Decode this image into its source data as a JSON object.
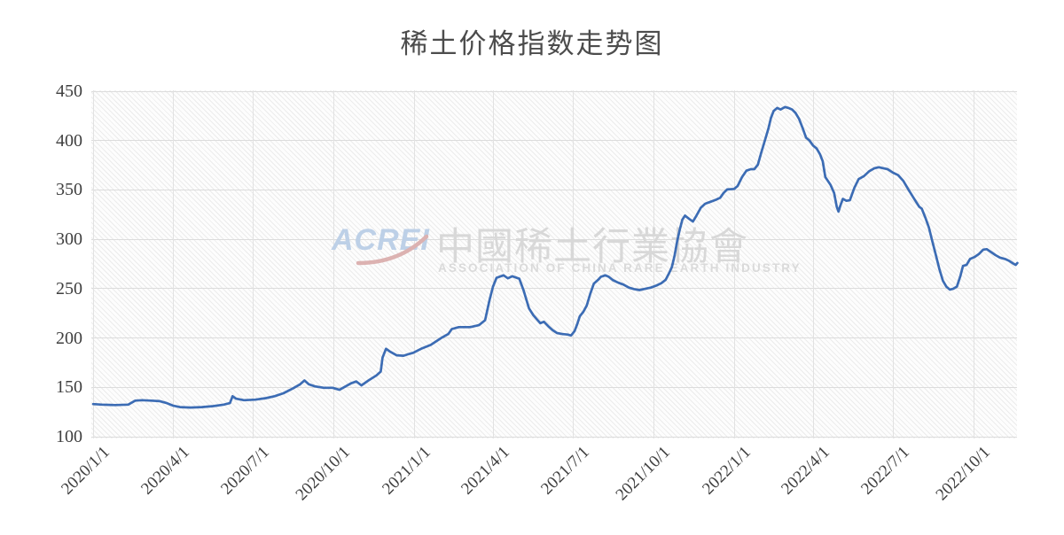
{
  "page": {
    "title": "稀土价格指数走势图"
  },
  "watermark": {
    "acrei": "ACREI",
    "cn": "中國稀土行業協會",
    "en": "ASSOCIATION OF CHINA RARE EARTH INDUSTRY"
  },
  "colors": {
    "line": "#3c6cb4",
    "grid": "#dcdcdc",
    "axis_text": "#3f3f3f",
    "title_text": "#4c4c4c",
    "watermark_blue": "#bdd0e7",
    "watermark_gray": "#d8d8d8",
    "watermark_red": "#dcA3a2"
  },
  "chart_data": {
    "type": "line",
    "title": "稀土价格指数走势图",
    "legend": "none",
    "grid": "on",
    "plot_background": "diagonal-hatch",
    "x_axis": {
      "tick_labels": [
        "2020/1/1",
        "2020/4/1",
        "2020/7/1",
        "2020/10/1",
        "2021/1/1",
        "2021/4/1",
        "2021/7/1",
        "2021/10/1",
        "2022/1/1",
        "2022/4/1",
        "2022/7/1",
        "2022/10/1"
      ],
      "label_rotation_deg": -45
    },
    "y_axis": {
      "min": 100,
      "max": 450,
      "step": 50,
      "ticks": [
        450,
        400,
        350,
        300,
        250,
        200,
        150,
        100
      ]
    },
    "series": [
      {
        "name": "稀土价格指数",
        "color": "#3c6cb4",
        "points": [
          [
            "2020-01-01",
            133
          ],
          [
            "2020-01-11",
            132.5
          ],
          [
            "2020-01-26",
            132
          ],
          [
            "2020-02-10",
            132.5
          ],
          [
            "2020-02-18",
            136.5
          ],
          [
            "2020-02-26",
            137
          ],
          [
            "2020-03-07",
            136.5
          ],
          [
            "2020-03-17",
            136
          ],
          [
            "2020-03-25",
            134
          ],
          [
            "2020-04-01",
            131.5
          ],
          [
            "2020-04-09",
            130
          ],
          [
            "2020-04-21",
            129.5
          ],
          [
            "2020-05-04",
            130
          ],
          [
            "2020-05-17",
            131
          ],
          [
            "2020-05-29",
            132.5
          ],
          [
            "2020-06-05",
            134
          ],
          [
            "2020-06-08",
            141
          ],
          [
            "2020-06-12",
            138.5
          ],
          [
            "2020-06-21",
            137
          ],
          [
            "2020-07-04",
            137.5
          ],
          [
            "2020-07-16",
            139
          ],
          [
            "2020-07-26",
            141
          ],
          [
            "2020-08-05",
            144
          ],
          [
            "2020-08-16",
            149
          ],
          [
            "2020-08-24",
            153
          ],
          [
            "2020-08-29",
            157
          ],
          [
            "2020-09-03",
            153
          ],
          [
            "2020-09-10",
            151
          ],
          [
            "2020-09-20",
            149.5
          ],
          [
            "2020-09-30",
            149.5
          ],
          [
            "2020-10-08",
            147.5
          ],
          [
            "2020-10-15",
            151
          ],
          [
            "2020-10-21",
            154
          ],
          [
            "2020-10-27",
            156
          ],
          [
            "2020-11-02",
            152
          ],
          [
            "2020-11-10",
            157
          ],
          [
            "2020-11-19",
            162
          ],
          [
            "2020-11-24",
            166
          ],
          [
            "2020-11-26",
            180
          ],
          [
            "2020-11-30",
            189
          ],
          [
            "2020-12-05",
            186
          ],
          [
            "2020-12-12",
            182.5
          ],
          [
            "2020-12-20",
            182
          ],
          [
            "2020-12-27",
            184
          ],
          [
            "2020-12-31",
            185
          ],
          [
            "2021-01-09",
            189
          ],
          [
            "2021-01-20",
            193
          ],
          [
            "2021-02-01",
            200
          ],
          [
            "2021-02-09",
            204
          ],
          [
            "2021-02-13",
            209
          ],
          [
            "2021-02-21",
            211
          ],
          [
            "2021-03-06",
            211
          ],
          [
            "2021-03-16",
            213
          ],
          [
            "2021-03-23",
            218
          ],
          [
            "2021-03-28",
            238
          ],
          [
            "2021-04-01",
            252
          ],
          [
            "2021-04-05",
            261
          ],
          [
            "2021-04-13",
            263.5
          ],
          [
            "2021-04-18",
            260.5
          ],
          [
            "2021-04-23",
            262.5
          ],
          [
            "2021-05-01",
            260
          ],
          [
            "2021-05-06",
            248
          ],
          [
            "2021-05-12",
            230
          ],
          [
            "2021-05-17",
            223
          ],
          [
            "2021-05-22",
            218
          ],
          [
            "2021-05-25",
            215
          ],
          [
            "2021-05-29",
            216.5
          ],
          [
            "2021-06-03",
            212
          ],
          [
            "2021-06-08",
            208
          ],
          [
            "2021-06-13",
            205
          ],
          [
            "2021-06-19",
            204
          ],
          [
            "2021-06-25",
            203.5
          ],
          [
            "2021-06-29",
            202.5
          ],
          [
            "2021-07-03",
            207
          ],
          [
            "2021-07-06",
            214
          ],
          [
            "2021-07-09",
            222
          ],
          [
            "2021-07-13",
            226.5
          ],
          [
            "2021-07-17",
            233
          ],
          [
            "2021-07-21",
            245
          ],
          [
            "2021-07-25",
            255
          ],
          [
            "2021-07-30",
            259
          ],
          [
            "2021-08-02",
            262
          ],
          [
            "2021-08-07",
            263.5
          ],
          [
            "2021-08-11",
            262
          ],
          [
            "2021-08-16",
            258.5
          ],
          [
            "2021-08-22",
            256
          ],
          [
            "2021-08-28",
            254
          ],
          [
            "2021-09-03",
            251
          ],
          [
            "2021-09-09",
            249.5
          ],
          [
            "2021-09-15",
            248.5
          ],
          [
            "2021-09-22",
            250
          ],
          [
            "2021-09-28",
            251
          ],
          [
            "2021-10-04",
            253
          ],
          [
            "2021-10-10",
            255.5
          ],
          [
            "2021-10-15",
            259
          ],
          [
            "2021-10-19",
            266
          ],
          [
            "2021-10-22",
            272
          ],
          [
            "2021-10-25",
            283
          ],
          [
            "2021-10-28",
            298
          ],
          [
            "2021-10-31",
            310
          ],
          [
            "2021-11-03",
            320
          ],
          [
            "2021-11-06",
            324
          ],
          [
            "2021-11-11",
            320.5
          ],
          [
            "2021-11-15",
            318
          ],
          [
            "2021-11-19",
            324
          ],
          [
            "2021-11-24",
            332
          ],
          [
            "2021-11-29",
            336
          ],
          [
            "2021-12-05",
            338
          ],
          [
            "2021-12-11",
            340
          ],
          [
            "2021-12-16",
            342
          ],
          [
            "2021-12-20",
            347
          ],
          [
            "2021-12-24",
            350.5
          ],
          [
            "2022-01-01",
            351
          ],
          [
            "2022-01-05",
            354
          ],
          [
            "2022-01-10",
            363
          ],
          [
            "2022-01-15",
            369.5
          ],
          [
            "2022-01-20",
            371
          ],
          [
            "2022-01-24",
            371
          ],
          [
            "2022-01-28",
            375.5
          ],
          [
            "2022-02-01",
            388
          ],
          [
            "2022-02-05",
            400
          ],
          [
            "2022-02-09",
            412
          ],
          [
            "2022-02-12",
            423
          ],
          [
            "2022-02-15",
            430
          ],
          [
            "2022-02-19",
            433
          ],
          [
            "2022-02-23",
            431.5
          ],
          [
            "2022-02-28",
            434
          ],
          [
            "2022-03-04",
            433
          ],
          [
            "2022-03-08",
            431.5
          ],
          [
            "2022-03-12",
            428
          ],
          [
            "2022-03-16",
            422
          ],
          [
            "2022-03-20",
            413
          ],
          [
            "2022-03-24",
            403
          ],
          [
            "2022-03-28",
            400
          ],
          [
            "2022-04-01",
            395
          ],
          [
            "2022-04-05",
            392
          ],
          [
            "2022-04-09",
            386
          ],
          [
            "2022-04-12",
            379
          ],
          [
            "2022-04-15",
            363
          ],
          [
            "2022-04-18",
            359
          ],
          [
            "2022-04-21",
            355
          ],
          [
            "2022-04-25",
            347
          ],
          [
            "2022-04-28",
            333
          ],
          [
            "2022-04-30",
            328
          ],
          [
            "2022-05-02",
            334
          ],
          [
            "2022-05-05",
            341
          ],
          [
            "2022-05-09",
            339
          ],
          [
            "2022-05-13",
            339.5
          ],
          [
            "2022-05-18",
            352
          ],
          [
            "2022-05-23",
            361
          ],
          [
            "2022-05-29",
            364
          ],
          [
            "2022-06-04",
            369
          ],
          [
            "2022-06-10",
            372
          ],
          [
            "2022-06-15",
            373
          ],
          [
            "2022-06-20",
            372
          ],
          [
            "2022-06-25",
            371
          ],
          [
            "2022-07-01",
            367.5
          ],
          [
            "2022-07-07",
            365
          ],
          [
            "2022-07-13",
            359
          ],
          [
            "2022-07-19",
            350
          ],
          [
            "2022-07-26",
            340
          ],
          [
            "2022-07-31",
            333
          ],
          [
            "2022-08-03",
            331
          ],
          [
            "2022-08-07",
            322
          ],
          [
            "2022-08-11",
            312
          ],
          [
            "2022-08-15",
            298
          ],
          [
            "2022-08-19",
            284
          ],
          [
            "2022-08-23",
            270
          ],
          [
            "2022-08-27",
            258
          ],
          [
            "2022-08-31",
            252
          ],
          [
            "2022-09-04",
            249
          ],
          [
            "2022-09-08",
            250
          ],
          [
            "2022-09-12",
            252
          ],
          [
            "2022-09-16",
            263
          ],
          [
            "2022-09-19",
            273
          ],
          [
            "2022-09-23",
            274
          ],
          [
            "2022-09-27",
            280
          ],
          [
            "2022-10-02",
            282
          ],
          [
            "2022-10-07",
            285
          ],
          [
            "2022-10-12",
            289.5
          ],
          [
            "2022-10-16",
            290
          ],
          [
            "2022-10-21",
            287
          ],
          [
            "2022-10-26",
            284
          ],
          [
            "2022-10-31",
            281.5
          ],
          [
            "2022-11-06",
            280
          ],
          [
            "2022-11-11",
            278
          ],
          [
            "2022-11-15",
            275.5
          ],
          [
            "2022-11-18",
            274
          ],
          [
            "2022-11-20",
            276
          ]
        ]
      }
    ]
  }
}
